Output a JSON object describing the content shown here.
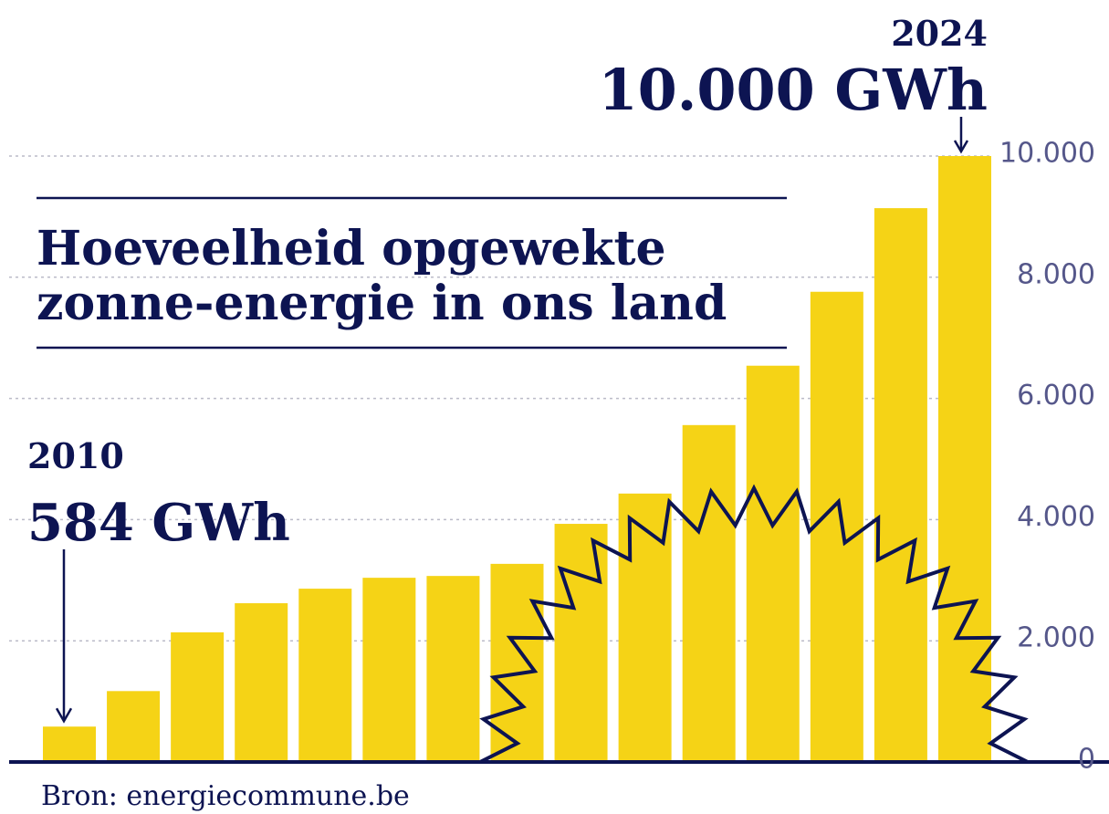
{
  "chart_data": {
    "type": "bar",
    "title": [
      "Hoeveelheid opgewekte",
      "zonne-energie in ons land"
    ],
    "source": "Bron: energiecommune.be",
    "categories": [
      "2010",
      null,
      null,
      null,
      null,
      null,
      null,
      null,
      null,
      null,
      null,
      null,
      null,
      null,
      "2024"
    ],
    "values": [
      584,
      1170,
      2140,
      2620,
      2860,
      3040,
      3070,
      3270,
      3930,
      4430,
      5560,
      6540,
      7760,
      9140,
      10000
    ],
    "value_labels": [
      "584 GWh",
      null,
      null,
      null,
      null,
      null,
      null,
      null,
      null,
      null,
      null,
      null,
      null,
      null,
      "10.000 GWh"
    ],
    "color": "#f5d316",
    "ylim": [
      0,
      10000
    ],
    "yticks": [
      0,
      {
        "value": 2000,
        "label": "2.000"
      },
      {
        "value": 4000,
        "label": "4.000"
      },
      {
        "value": 6000,
        "label": "6.000"
      },
      {
        "value": 8000,
        "label": "8.000"
      },
      {
        "value": 10000,
        "label": "10.000"
      }
    ],
    "grid": true
  }
}
